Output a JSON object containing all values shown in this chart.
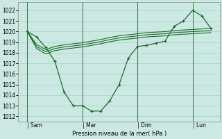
{
  "xlabel": "Pression niveau de la mer( hPa )",
  "background_color": "#cce8e2",
  "grid_color": "#aad0ca",
  "line_color": "#1a6b2a",
  "ylim": [
    1011.5,
    1022.8
  ],
  "yticks": [
    1012,
    1013,
    1014,
    1015,
    1016,
    1017,
    1018,
    1019,
    1020,
    1021,
    1022
  ],
  "xtick_labels": [
    "| Sam",
    "| Mar",
    "| Dim",
    "| Lun"
  ],
  "xtick_positions": [
    1,
    4,
    7,
    10
  ],
  "vlines": [
    1,
    4,
    7,
    10
  ],
  "xlim": [
    0.5,
    11.5
  ],
  "main_x": [
    1,
    1.5,
    2.0,
    2.5,
    3.0,
    3.5,
    4.0,
    4.5,
    5.0,
    5.5,
    6.0,
    6.5,
    7.0,
    7.5,
    8.0,
    8.5,
    9.0,
    9.5,
    10.0,
    10.5,
    11.0
  ],
  "main_y": [
    1020.0,
    1019.5,
    1018.5,
    1017.2,
    1014.3,
    1013.0,
    1013.0,
    1012.5,
    1012.5,
    1013.5,
    1015.0,
    1017.5,
    1018.6,
    1018.7,
    1018.9,
    1019.1,
    1020.5,
    1021.0,
    1022.0,
    1021.5,
    1020.3
  ],
  "band_series": [
    [
      1020.0,
      1018.8,
      1018.3,
      1018.6,
      1018.75,
      1018.85,
      1018.95,
      1019.1,
      1019.25,
      1019.45,
      1019.6,
      1019.7,
      1019.8,
      1019.9,
      1019.95,
      1020.0,
      1020.1,
      1020.15,
      1020.2,
      1020.25,
      1020.3
    ],
    [
      1020.0,
      1018.6,
      1018.1,
      1018.4,
      1018.55,
      1018.65,
      1018.75,
      1018.9,
      1019.05,
      1019.25,
      1019.4,
      1019.5,
      1019.6,
      1019.7,
      1019.75,
      1019.8,
      1019.9,
      1019.95,
      1020.0,
      1020.05,
      1020.1
    ],
    [
      1020.0,
      1018.4,
      1017.9,
      1018.2,
      1018.35,
      1018.45,
      1018.55,
      1018.7,
      1018.85,
      1019.05,
      1019.2,
      1019.3,
      1019.4,
      1019.5,
      1019.55,
      1019.6,
      1019.7,
      1019.75,
      1019.8,
      1019.85,
      1019.9
    ]
  ]
}
